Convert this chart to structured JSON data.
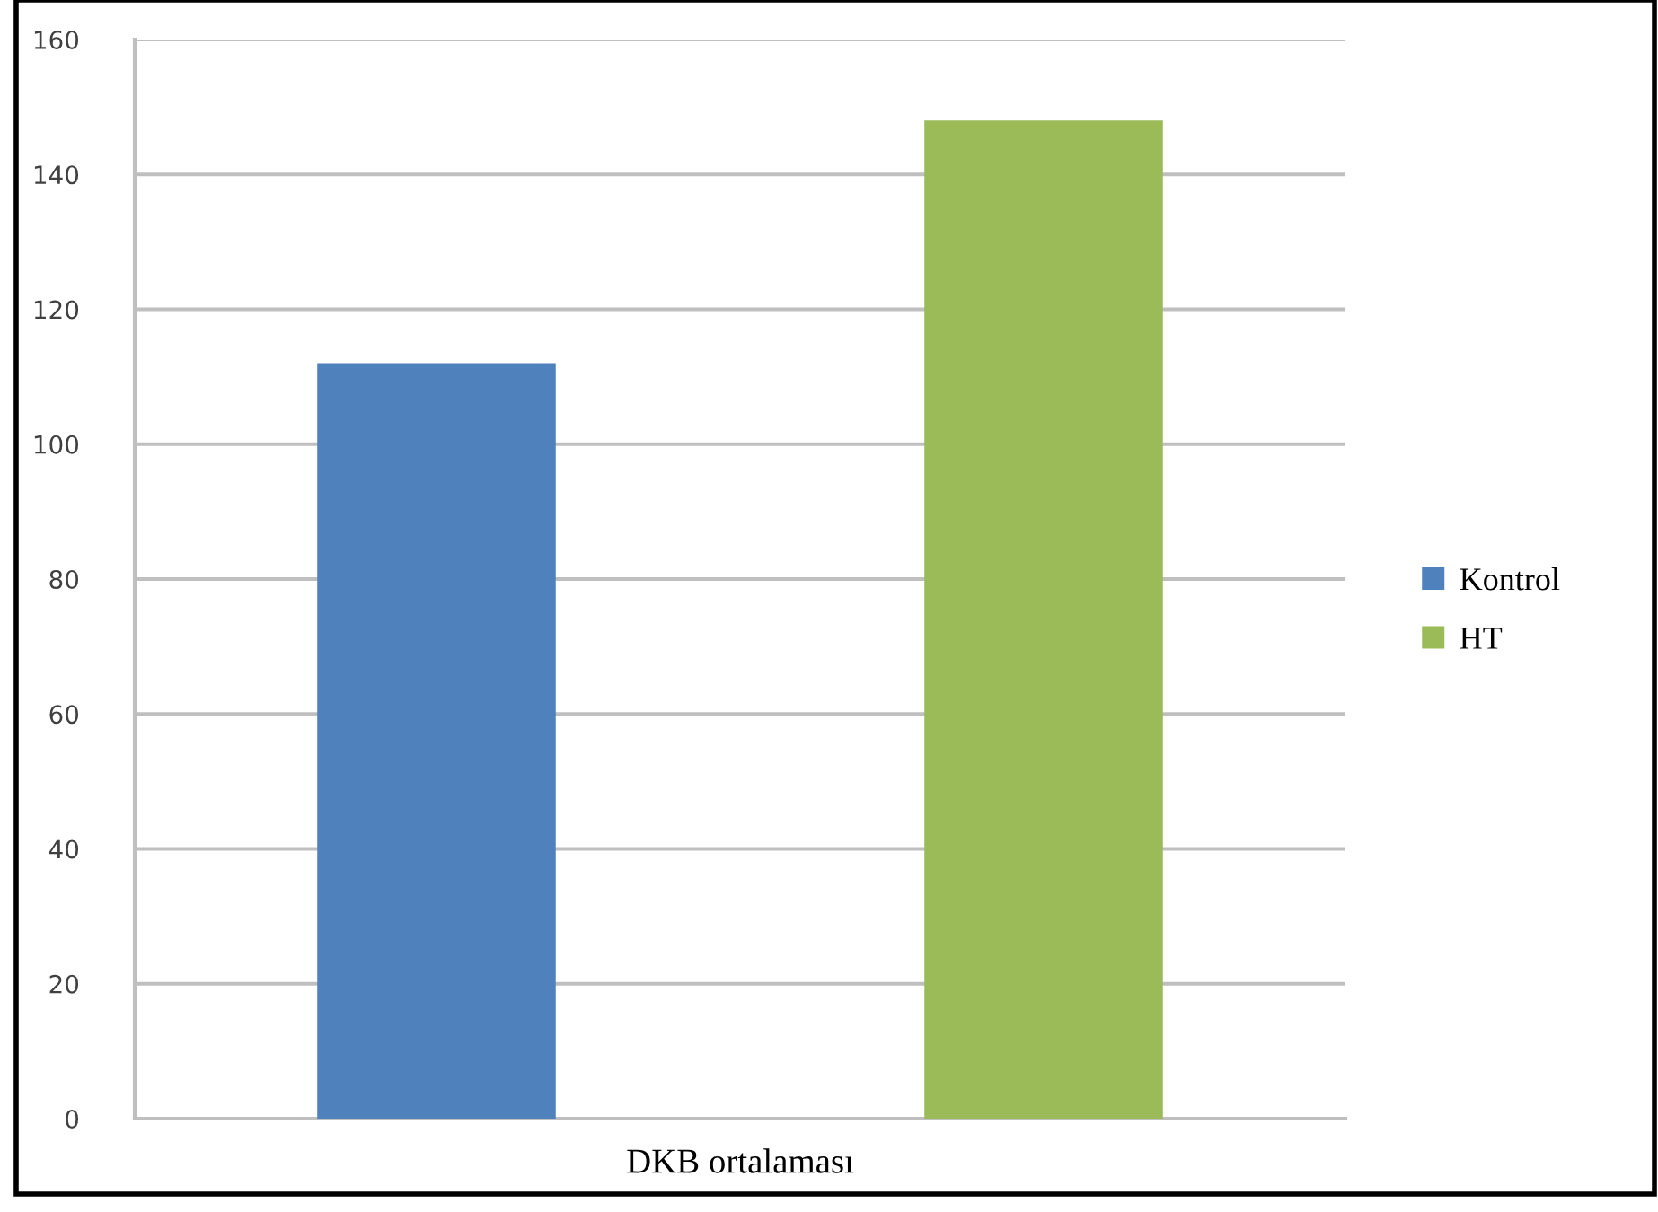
{
  "chart_data": {
    "type": "bar",
    "categories": [
      "DKB ortalaması"
    ],
    "series": [
      {
        "name": "Kontrol",
        "color": "#4f81bd",
        "values": [
          112
        ]
      },
      {
        "name": "HT",
        "color": "#9bbb59",
        "values": [
          148
        ]
      }
    ],
    "ylim": [
      0,
      160
    ],
    "yticks": [
      0,
      20,
      40,
      60,
      80,
      100,
      120,
      140,
      160
    ],
    "grid": "y",
    "legend": "right"
  }
}
